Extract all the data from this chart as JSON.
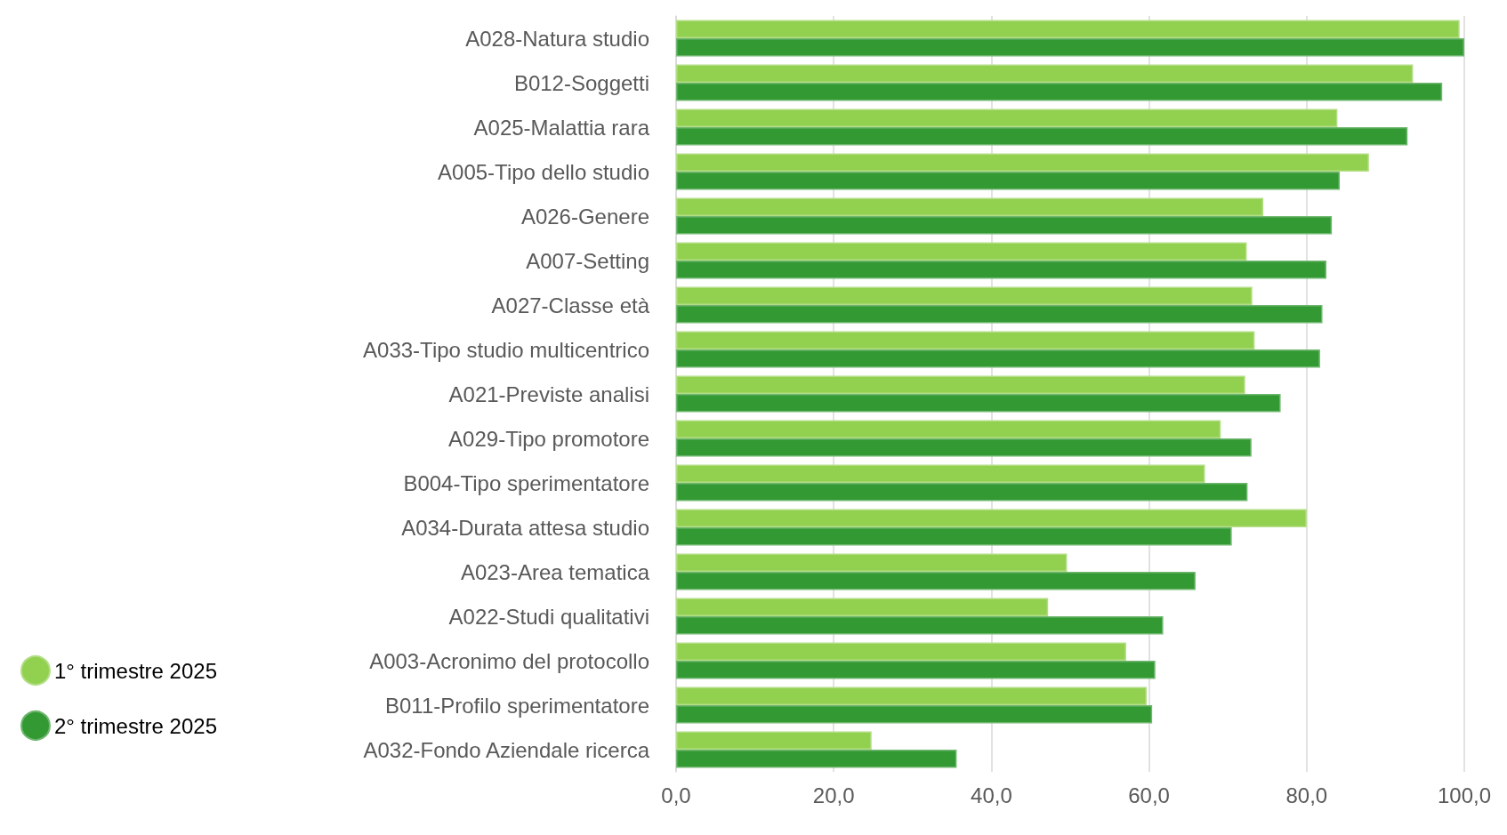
{
  "chart_data": {
    "type": "bar",
    "orientation": "horizontal",
    "categories": [
      "A028-Natura studio",
      "B012-Soggetti",
      "A025-Malattia rara",
      "A005-Tipo dello studio",
      "A026-Genere",
      "A007-Setting",
      "A027-Classe età",
      "A033-Tipo studio multicentrico",
      "A021-Previste analisi",
      "A029-Tipo promotore",
      "B004-Tipo sperimentatore",
      "A034-Durata attesa studio",
      "A023-Area tematica",
      "A022-Studi qualitativi",
      "A003-Acronimo del protocollo",
      "B011-Profilo sperimentatore",
      "A032-Fondo Aziendale ricerca"
    ],
    "series": [
      {
        "name": "1° trimestre 2025",
        "color": "#92d050",
        "values": [
          99.4,
          93.5,
          83.9,
          87.9,
          74.5,
          72.4,
          73.1,
          73.4,
          72.2,
          69.1,
          67.1,
          80.0,
          49.6,
          47.2,
          57.1,
          59.7,
          24.8
        ]
      },
      {
        "name": "2° trimestre 2025",
        "color": "#339933",
        "values": [
          100.0,
          97.2,
          92.8,
          84.2,
          83.2,
          82.5,
          82.0,
          81.7,
          76.7,
          73.0,
          72.5,
          70.5,
          65.9,
          61.8,
          60.8,
          60.4,
          35.6
        ]
      }
    ],
    "xlim": [
      0,
      100
    ],
    "xticks": [
      {
        "value": 0,
        "label": "0,0"
      },
      {
        "value": 20,
        "label": "20,0"
      },
      {
        "value": 40,
        "label": "40,0"
      },
      {
        "value": 60,
        "label": "60,0"
      },
      {
        "value": 80,
        "label": "80,0"
      },
      {
        "value": 100,
        "label": "100,0"
      }
    ],
    "grid": "x",
    "legend": "bottom left"
  }
}
